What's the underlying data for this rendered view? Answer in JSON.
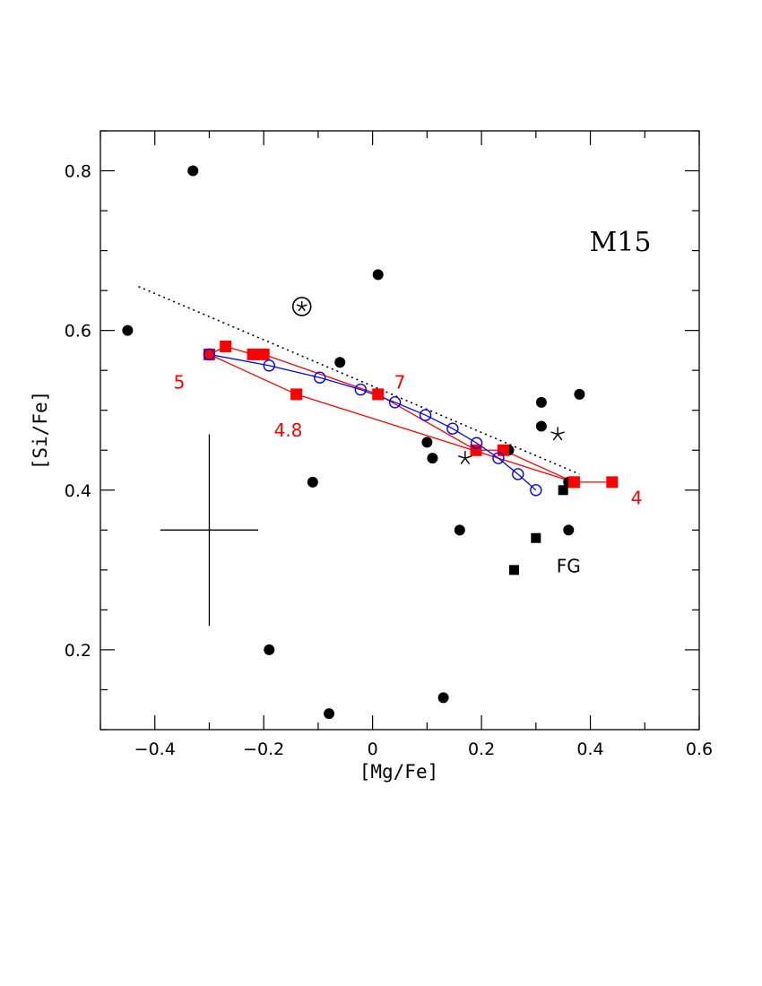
{
  "chart_data": {
    "type": "scatter",
    "title": "M15",
    "xlabel": "[Mg/Fe]",
    "ylabel": "[Si/Fe]",
    "xlim": [
      -0.5,
      0.6
    ],
    "ylim": [
      0.1,
      0.85
    ],
    "x_ticks": [
      "−0.4",
      "−0.2",
      "0",
      "0.2",
      "0.4",
      "0.6"
    ],
    "y_ticks": [
      "0.2",
      "0.4",
      "0.6",
      "0.8"
    ],
    "grid": false,
    "series": [
      {
        "marker": "filled-circle",
        "color": "#000000",
        "points": [
          [
            -0.33,
            0.8
          ],
          [
            -0.45,
            0.6
          ],
          [
            0.01,
            0.67
          ],
          [
            -0.06,
            0.56
          ],
          [
            0.31,
            0.51
          ],
          [
            0.38,
            0.52
          ],
          [
            0.31,
            0.48
          ],
          [
            0.1,
            0.46
          ],
          [
            0.25,
            0.45
          ],
          [
            0.11,
            0.44
          ],
          [
            -0.11,
            0.41
          ],
          [
            0.36,
            0.41
          ],
          [
            0.16,
            0.35
          ],
          [
            0.36,
            0.35
          ],
          [
            -0.19,
            0.2
          ],
          [
            0.13,
            0.14
          ],
          [
            -0.08,
            0.12
          ]
        ]
      },
      {
        "marker": "filled-square",
        "color": "#000000",
        "points": [
          [
            0.35,
            0.4
          ],
          [
            0.3,
            0.34
          ],
          [
            0.26,
            0.3
          ]
        ]
      },
      {
        "marker": "star",
        "color": "#000000",
        "points": [
          [
            0.34,
            0.47
          ],
          [
            0.17,
            0.44
          ]
        ]
      },
      {
        "marker": "circled-star",
        "color": "#000000",
        "points": [
          [
            -0.13,
            0.63
          ]
        ]
      },
      {
        "marker": "red-square-path",
        "color": "#ff0000",
        "points": [
          [
            0.44,
            0.41
          ],
          [
            0.37,
            0.41
          ],
          [
            0.24,
            0.45
          ],
          [
            0.19,
            0.45
          ],
          [
            0.01,
            0.52
          ],
          [
            -0.2,
            0.57
          ],
          [
            -0.22,
            0.57
          ],
          [
            -0.27,
            0.58
          ],
          [
            -0.3,
            0.57
          ],
          [
            -0.14,
            0.52
          ],
          [
            0.37,
            0.41
          ]
        ]
      },
      {
        "marker": "open-circle-path",
        "color": "#0000ff",
        "points": [
          [
            -0.3,
            0.57
          ],
          [
            -0.19,
            0.556
          ],
          [
            -0.097,
            0.541
          ],
          [
            -0.022,
            0.526
          ],
          [
            0.041,
            0.51
          ],
          [
            0.097,
            0.494
          ],
          [
            0.147,
            0.477
          ],
          [
            0.191,
            0.459
          ],
          [
            0.231,
            0.44
          ],
          [
            0.267,
            0.42
          ],
          [
            0.3,
            0.4
          ]
        ]
      },
      {
        "marker": "dotted-line",
        "color": "#000000",
        "points": [
          [
            -0.43,
            0.655
          ],
          [
            0.38,
            0.42
          ]
        ]
      }
    ],
    "error_bar": {
      "x": -0.3,
      "y": 0.35,
      "xerr": 0.09,
      "yerr": 0.12
    },
    "annotations": [
      {
        "text": "5",
        "x": -0.355,
        "y": 0.535,
        "color": "#ff0000"
      },
      {
        "text": "7",
        "x": 0.05,
        "y": 0.535,
        "color": "#ff0000"
      },
      {
        "text": "4.8",
        "x": -0.155,
        "y": 0.475,
        "color": "#ff0000"
      },
      {
        "text": "4",
        "x": 0.485,
        "y": 0.39,
        "color": "#ff0000"
      },
      {
        "text": "FG",
        "x": 0.36,
        "y": 0.305,
        "color": "#000000"
      }
    ]
  }
}
